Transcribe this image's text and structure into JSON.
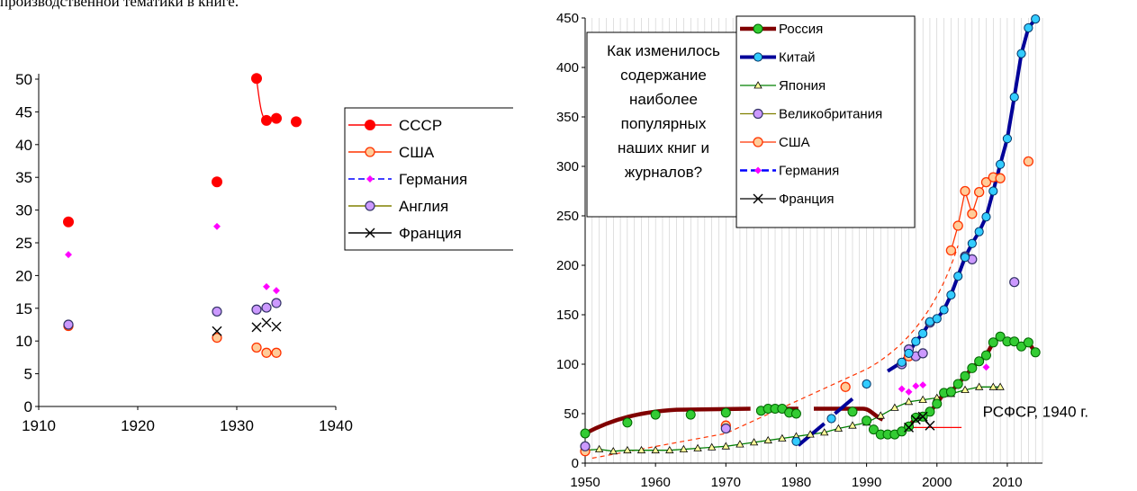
{
  "top_text": "производственной тематики в книге.",
  "colors": {
    "ussr": "#ff0000",
    "usa": "#ff3300",
    "usa_fill": "#ffcc99",
    "germany": "#ff00ff",
    "germany_line": "#0000ff",
    "england_fill": "#cc99ff",
    "england_line": "#808000",
    "france": "#000000",
    "russia_line": "#800000",
    "russia_fill": "#33cc33",
    "china_line": "#000099",
    "china_fill": "#33ccff",
    "japan_line": "#008000",
    "japan_fill": "#ffff99",
    "uk_fill": "#cc99ff",
    "uk_line": "#808000",
    "rsfsr": "#ff0000"
  },
  "chart_data": [
    {
      "type": "scatter",
      "xlim": [
        1910,
        1940
      ],
      "ylim": [
        0,
        50
      ],
      "x_ticks": [
        "1910",
        "1920",
        "1930",
        "1940"
      ],
      "y_ticks": [
        "0",
        "5",
        "10",
        "15",
        "20",
        "25",
        "30",
        "35",
        "40",
        "45",
        "50"
      ],
      "legend_position": "right",
      "series": [
        {
          "name": "СССР",
          "points": [
            [
              1913,
              28.2
            ],
            [
              1928,
              34.3
            ],
            [
              1932,
              50.1
            ],
            [
              1933,
              43.7
            ],
            [
              1934,
              44.0
            ],
            [
              1936,
              43.5
            ]
          ]
        },
        {
          "name": "США",
          "points": [
            [
              1913,
              12.3
            ],
            [
              1928,
              10.5
            ],
            [
              1932,
              9.0
            ],
            [
              1933,
              8.2
            ],
            [
              1934,
              8.2
            ]
          ]
        },
        {
          "name": "Германия",
          "points": [
            [
              1913,
              23.2
            ],
            [
              1928,
              27.5
            ],
            [
              1933,
              18.3
            ],
            [
              1934,
              17.7
            ]
          ]
        },
        {
          "name": "Англия",
          "points": [
            [
              1913,
              12.5
            ],
            [
              1928,
              14.5
            ],
            [
              1932,
              14.8
            ],
            [
              1933,
              15.1
            ],
            [
              1934,
              15.8
            ]
          ]
        },
        {
          "name": "Франция",
          "points": [
            [
              1928,
              11.5
            ],
            [
              1932,
              12.1
            ],
            [
              1933,
              12.8
            ],
            [
              1934,
              12.2
            ]
          ]
        }
      ]
    },
    {
      "type": "line",
      "xlim": [
        1950,
        2015
      ],
      "ylim": [
        0,
        450
      ],
      "x_ticks": [
        "1950",
        "1960",
        "1970",
        "1980",
        "1990",
        "2000",
        "2010"
      ],
      "y_ticks": [
        "0",
        "50",
        "100",
        "150",
        "200",
        "250",
        "300",
        "350",
        "400",
        "450"
      ],
      "legend_position": "top-center",
      "annotation": "Как изменилось содержание наиболее популярных наших книг и журналов?",
      "annotation_lines": [
        "Как изменилось",
        "содержание",
        "наиболее",
        "популярных",
        "наших книг и",
        "журналов?"
      ],
      "reference_label": "РСФСР, 1940 г.",
      "reference_value": 36,
      "series": [
        {
          "name": "Россия",
          "points": [
            [
              1950,
              30
            ],
            [
              1956,
              41
            ],
            [
              1960,
              49
            ],
            [
              1965,
              49
            ],
            [
              1970,
              51
            ],
            [
              1975,
              53
            ],
            [
              1976,
              55
            ],
            [
              1977,
              55
            ],
            [
              1978,
              55
            ],
            [
              1979,
              51
            ],
            [
              1980,
              50
            ],
            [
              1988,
              52
            ],
            [
              1990,
              43
            ],
            [
              1991,
              34
            ],
            [
              1992,
              29
            ],
            [
              1993,
              29
            ],
            [
              1994,
              29
            ],
            [
              1995,
              32
            ],
            [
              1996,
              37
            ],
            [
              1997,
              46
            ],
            [
              1998,
              47
            ],
            [
              1999,
              52
            ],
            [
              2000,
              60
            ],
            [
              2001,
              71
            ],
            [
              2002,
              72
            ],
            [
              2003,
              80
            ],
            [
              2004,
              88
            ],
            [
              2005,
              96
            ],
            [
              2006,
              103
            ],
            [
              2007,
              109
            ],
            [
              2008,
              122
            ],
            [
              2009,
              128
            ],
            [
              2010,
              123
            ],
            [
              2011,
              123
            ],
            [
              2012,
              118
            ],
            [
              2013,
              122
            ],
            [
              2014,
              112
            ]
          ]
        },
        {
          "name": "Китай",
          "points": [
            [
              1980,
              22
            ],
            [
              1985,
              45
            ],
            [
              1990,
              80
            ],
            [
              1995,
              102
            ],
            [
              1996,
              111
            ],
            [
              1997,
              123
            ],
            [
              1998,
              131
            ],
            [
              1999,
              143
            ],
            [
              2000,
              146
            ],
            [
              2001,
              155
            ],
            [
              2002,
              170
            ],
            [
              2003,
              189
            ],
            [
              2004,
              208
            ],
            [
              2005,
              222
            ],
            [
              2006,
              234
            ],
            [
              2007,
              249
            ],
            [
              2008,
              275
            ],
            [
              2009,
              302
            ],
            [
              2010,
              328
            ],
            [
              2011,
              370
            ],
            [
              2012,
              414
            ],
            [
              2013,
              440
            ],
            [
              2014,
              449
            ]
          ]
        },
        {
          "name": "Япония",
          "points": [
            [
              1950,
              13
            ],
            [
              1952,
              14
            ],
            [
              1954,
              12
            ],
            [
              1956,
              13
            ],
            [
              1958,
              13
            ],
            [
              1960,
              13
            ],
            [
              1962,
              13
            ],
            [
              1964,
              14
            ],
            [
              1966,
              15
            ],
            [
              1968,
              16
            ],
            [
              1970,
              17
            ],
            [
              1972,
              19
            ],
            [
              1974,
              21
            ],
            [
              1976,
              23
            ],
            [
              1978,
              25
            ],
            [
              1980,
              27
            ],
            [
              1982,
              29
            ],
            [
              1984,
              31
            ],
            [
              1986,
              35
            ],
            [
              1988,
              38
            ],
            [
              1990,
              41
            ],
            [
              1992,
              48
            ],
            [
              1994,
              56
            ],
            [
              1996,
              62
            ],
            [
              1998,
              64
            ],
            [
              2000,
              66
            ],
            [
              2002,
              70
            ],
            [
              2004,
              74
            ],
            [
              2006,
              77
            ],
            [
              2008,
              77
            ],
            [
              2009,
              77
            ]
          ]
        },
        {
          "name": "Великобритания",
          "points": [
            [
              1950,
              17
            ],
            [
              1970,
              35
            ],
            [
              1995,
              100
            ],
            [
              1996,
              115
            ],
            [
              1997,
              108
            ],
            [
              1998,
              111
            ],
            [
              1999,
              142
            ],
            [
              2004,
              209
            ],
            [
              2005,
              206
            ],
            [
              2011,
              183
            ]
          ]
        },
        {
          "name": "США",
          "points": [
            [
              1950,
              12
            ],
            [
              1970,
              38
            ],
            [
              1987,
              77
            ],
            [
              1996,
              108
            ],
            [
              2002,
              215
            ],
            [
              2003,
              240
            ],
            [
              2004,
              275
            ],
            [
              2005,
              252
            ],
            [
              2006,
              274
            ],
            [
              2007,
              284
            ],
            [
              2008,
              289
            ],
            [
              2009,
              288
            ],
            [
              2013,
              305
            ]
          ]
        },
        {
          "name": "Германия",
          "points": [
            [
              1995,
              75
            ],
            [
              1996,
              72
            ],
            [
              1997,
              78
            ],
            [
              1998,
              79
            ],
            [
              2007,
              97
            ]
          ]
        },
        {
          "name": "Франция",
          "points": [
            [
              1996,
              36
            ],
            [
              1997,
              44
            ],
            [
              1998,
              47
            ],
            [
              1999,
              38
            ]
          ]
        }
      ]
    }
  ]
}
